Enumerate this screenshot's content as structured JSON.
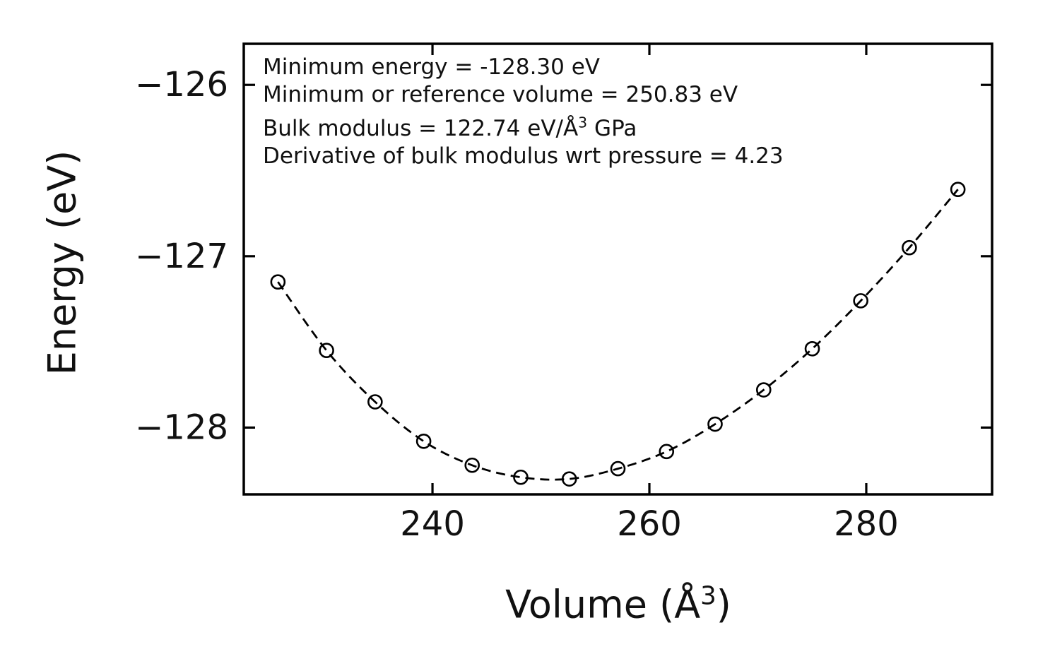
{
  "figure": {
    "background": "#ffffff",
    "axis_color": "#000000"
  },
  "chart_data": {
    "type": "scatter",
    "title": "",
    "xlabel": "Volume (Å^3)",
    "xlabel_segments": [
      {
        "text": "Volume (Å"
      },
      {
        "text": "3",
        "sup": true
      },
      {
        "text": ")"
      }
    ],
    "ylabel": "Energy (eV)",
    "x_ticks": [
      240,
      260,
      280
    ],
    "x_tick_labels": [
      "240",
      "260",
      "280"
    ],
    "y_ticks": [
      -126,
      -127,
      -128
    ],
    "y_tick_labels": [
      "−126",
      "−127",
      "−128"
    ],
    "xlim": [
      222.6,
      291.6
    ],
    "ylim": [
      -128.39,
      -125.76
    ],
    "grid": false,
    "legend": null,
    "line_style": "dashed",
    "marker_style": "open-circle",
    "color": "#000000",
    "volumes": [
      225.75,
      230.23,
      234.71,
      239.19,
      243.66,
      248.14,
      252.62,
      257.1,
      261.58,
      266.06,
      270.54,
      275.02,
      279.49,
      283.97,
      288.45
    ],
    "energies": [
      -127.15,
      -127.55,
      -127.85,
      -128.08,
      -128.22,
      -128.29,
      -128.3,
      -128.24,
      -128.14,
      -127.98,
      -127.78,
      -127.54,
      -127.26,
      -126.95,
      -126.61
    ],
    "annotation_lines": [
      [
        {
          "text": "Minimum energy = -128.30 eV"
        }
      ],
      [
        {
          "text": "Minimum or reference volume = 250.83 eV"
        }
      ],
      [
        {
          "text": "Bulk modulus = 122.74 eV/Å"
        },
        {
          "text": "3",
          "sup": true
        },
        {
          "text": " GPa"
        }
      ],
      [
        {
          "text": "Derivative of bulk modulus wrt pressure = 4.23"
        }
      ]
    ],
    "fit_parameters": {
      "minimum_energy_eV": -128.3,
      "minimum_or_reference_volume": 250.83,
      "bulk_modulus": 122.74,
      "bulk_modulus_units_label": "eV/Å3 GPa",
      "derivative_of_bulk_modulus_wrt_pressure": 4.23
    }
  }
}
